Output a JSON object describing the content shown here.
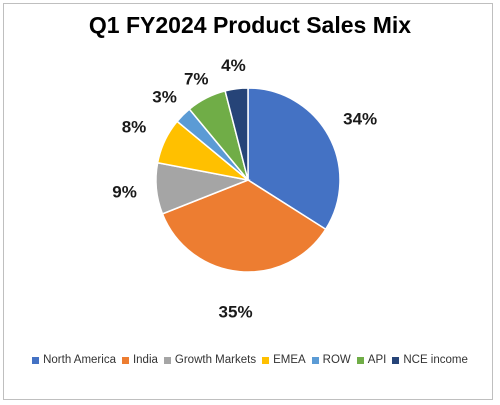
{
  "chart_data": {
    "type": "pie",
    "title": "Q1 FY2024 Product Sales Mix",
    "categories": [
      "North America",
      "India",
      "Growth Markets",
      "EMEA",
      "ROW",
      "API",
      "NCE income"
    ],
    "values": [
      34,
      35,
      9,
      8,
      3,
      7,
      4
    ],
    "labels": [
      "34%",
      "35%",
      "9%",
      "8%",
      "3%",
      "7%",
      "4%"
    ],
    "colors": [
      "#4472c4",
      "#ed7d31",
      "#a5a5a5",
      "#ffc000",
      "#5b9bd5",
      "#70ad47",
      "#264478"
    ],
    "legend_position": "bottom"
  }
}
